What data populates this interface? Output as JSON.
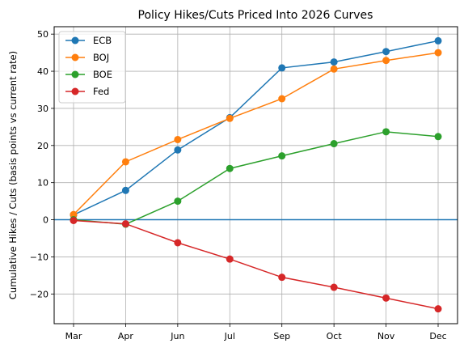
{
  "chart_data": {
    "type": "line",
    "title": "Policy Hikes/Cuts Priced Into 2026 Curves",
    "xlabel": "",
    "ylabel": "Cumulative Hikes / Cuts (basis points vs current rate)",
    "categories": [
      "Mar",
      "Apr",
      "Jun",
      "Jul",
      "Sep",
      "Oct",
      "Nov",
      "Dec"
    ],
    "ylim": [
      -28,
      52
    ],
    "yticks": [
      -20,
      -10,
      0,
      10,
      20,
      30,
      40,
      50
    ],
    "ytick_labels": [
      "−20",
      "−10",
      "0",
      "10",
      "20",
      "30",
      "40",
      "50"
    ],
    "grid": true,
    "legend_position": "upper-left",
    "reference_line": {
      "y": 0,
      "color": "#1f77b4"
    },
    "series": [
      {
        "name": "ECB",
        "color": "#1f77b4",
        "values": [
          1.3,
          7.9,
          18.8,
          27.5,
          40.9,
          42.5,
          45.3,
          48.2
        ]
      },
      {
        "name": "BOJ",
        "color": "#ff7f0e",
        "values": [
          1.4,
          15.6,
          21.6,
          27.3,
          32.6,
          40.6,
          42.9,
          45.0
        ]
      },
      {
        "name": "BOE",
        "color": "#2ca02c",
        "values": [
          0.0,
          -1.2,
          5.0,
          13.8,
          17.2,
          20.5,
          23.7,
          22.4
        ]
      },
      {
        "name": "Fed",
        "color": "#d62728",
        "values": [
          -0.2,
          -1.1,
          -6.2,
          -10.6,
          -15.5,
          -18.2,
          -21.1,
          -24.0
        ]
      }
    ]
  }
}
